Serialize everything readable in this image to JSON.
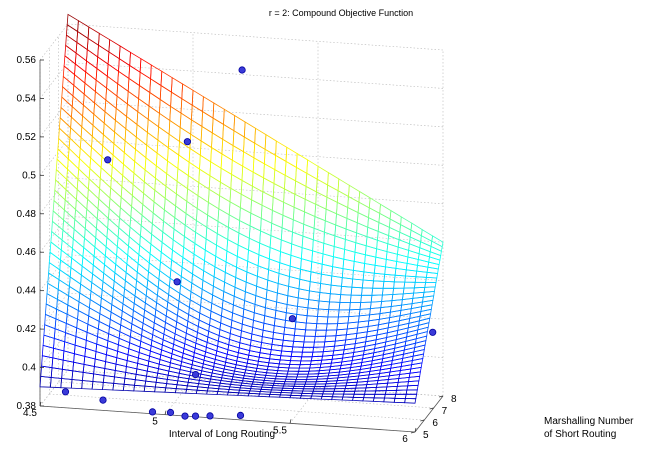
{
  "chart_data": {
    "type": "surface",
    "title": "r = 2: Compound Objective Function",
    "xlabel": "Interval of Long Routing",
    "ylabel_lines": [
      "Marshalling Number",
      "of Short Routing"
    ],
    "zlabel": "",
    "xlim": [
      4.5,
      6
    ],
    "ylim": [
      5,
      8
    ],
    "zlim": [
      0.38,
      0.56
    ],
    "x_ticks": [
      "4.5",
      "5",
      "5.5",
      "6"
    ],
    "y_ticks": [
      "5",
      "6",
      "7",
      "8"
    ],
    "z_ticks": [
      "0.38",
      "0.4",
      "0.42",
      "0.44",
      "0.46",
      "0.48",
      "0.5",
      "0.52",
      "0.54",
      "0.56"
    ],
    "grid": true,
    "colormap": "jet",
    "surface_corners": [
      {
        "x": 4.5,
        "y": 5,
        "z": 0.39
      },
      {
        "x": 4.5,
        "y": 8,
        "z": 0.565
      },
      {
        "x": 6,
        "y": 8,
        "z": 0.46
      },
      {
        "x": 6,
        "y": 5,
        "z": 0.395
      }
    ],
    "scatter_points": [
      {
        "x": 4.6,
        "y": 5.05,
        "z": 0.388
      },
      {
        "x": 4.75,
        "y": 5.05,
        "z": 0.385
      },
      {
        "x": 4.95,
        "y": 5.0,
        "z": 0.381
      },
      {
        "x": 5.02,
        "y": 5.05,
        "z": 0.381
      },
      {
        "x": 5.08,
        "y": 5.0,
        "z": 0.38
      },
      {
        "x": 5.12,
        "y": 5.05,
        "z": 0.38
      },
      {
        "x": 5.18,
        "y": 5.0,
        "z": 0.381
      },
      {
        "x": 5.3,
        "y": 5.05,
        "z": 0.382
      },
      {
        "x": 4.7,
        "y": 6.9,
        "z": 0.498
      },
      {
        "x": 5.0,
        "y": 7.4,
        "z": 0.507
      },
      {
        "x": 5.2,
        "y": 7.9,
        "z": 0.543
      },
      {
        "x": 5.0,
        "y": 6.3,
        "z": 0.441
      },
      {
        "x": 5.45,
        "y": 6.6,
        "z": 0.424
      },
      {
        "x": 5.1,
        "y": 5.6,
        "z": 0.398
      },
      {
        "x": 6.0,
        "y": 6.9,
        "z": 0.42
      }
    ]
  }
}
